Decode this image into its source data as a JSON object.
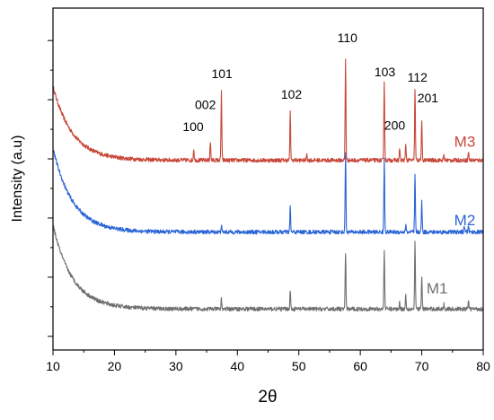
{
  "chart_data": {
    "type": "line",
    "title": "",
    "xlabel": "2θ",
    "ylabel": "Intensity (a.u)",
    "xlim": [
      10,
      80
    ],
    "x_ticks": [
      10,
      20,
      30,
      40,
      50,
      60,
      70,
      80
    ],
    "y_tick_labels": false,
    "grid": false,
    "legend": "none",
    "series": [
      {
        "name": "M3",
        "color": "#c8483a",
        "baseline": 0.555,
        "background_rise": 0.215,
        "peaks": [
          {
            "x": 32.9,
            "h": 0.035
          },
          {
            "x": 35.6,
            "h": 0.055
          },
          {
            "x": 37.4,
            "h": 0.205
          },
          {
            "x": 48.6,
            "h": 0.14
          },
          {
            "x": 51.3,
            "h": 0.02
          },
          {
            "x": 57.6,
            "h": 0.295
          },
          {
            "x": 63.9,
            "h": 0.235
          },
          {
            "x": 66.4,
            "h": 0.035
          },
          {
            "x": 67.4,
            "h": 0.045
          },
          {
            "x": 68.9,
            "h": 0.21
          },
          {
            "x": 70.0,
            "h": 0.11
          },
          {
            "x": 73.6,
            "h": 0.015
          },
          {
            "x": 77.6,
            "h": 0.025
          }
        ]
      },
      {
        "name": "M2",
        "color": "#2a64d6",
        "baseline": 0.345,
        "background_rise": 0.245,
        "peaks": [
          {
            "x": 37.4,
            "h": 0.02
          },
          {
            "x": 48.6,
            "h": 0.075
          },
          {
            "x": 57.6,
            "h": 0.235
          },
          {
            "x": 63.9,
            "h": 0.215
          },
          {
            "x": 67.4,
            "h": 0.02
          },
          {
            "x": 68.9,
            "h": 0.165
          },
          {
            "x": 70.0,
            "h": 0.09
          },
          {
            "x": 76.9,
            "h": 0.02
          },
          {
            "x": 77.6,
            "h": 0.02
          }
        ]
      },
      {
        "name": "M1",
        "color": "#6f6f6f",
        "baseline": 0.12,
        "background_rise": 0.245,
        "peaks": [
          {
            "x": 37.4,
            "h": 0.03
          },
          {
            "x": 48.6,
            "h": 0.055
          },
          {
            "x": 57.6,
            "h": 0.165
          },
          {
            "x": 63.9,
            "h": 0.175
          },
          {
            "x": 66.4,
            "h": 0.02
          },
          {
            "x": 67.4,
            "h": 0.04
          },
          {
            "x": 68.9,
            "h": 0.195
          },
          {
            "x": 70.0,
            "h": 0.095
          },
          {
            "x": 73.6,
            "h": 0.015
          },
          {
            "x": 77.6,
            "h": 0.025
          }
        ]
      }
    ],
    "series_labels": [
      {
        "text": "M3",
        "x": 77.0,
        "y": 0.595
      },
      {
        "text": "M2",
        "x": 77.0,
        "y": 0.365
      },
      {
        "text": "M1",
        "x": 72.5,
        "y": 0.165
      }
    ],
    "annotations": [
      {
        "text": "100",
        "x": 32.8,
        "y": 0.64
      },
      {
        "text": "002",
        "x": 34.8,
        "y": 0.705
      },
      {
        "text": "101",
        "x": 37.5,
        "y": 0.795
      },
      {
        "text": "102",
        "x": 48.8,
        "y": 0.735
      },
      {
        "text": "110",
        "x": 57.9,
        "y": 0.9
      },
      {
        "text": "103",
        "x": 64.0,
        "y": 0.8
      },
      {
        "text": "112",
        "x": 69.3,
        "y": 0.785
      },
      {
        "text": "200",
        "x": 65.6,
        "y": 0.645
      },
      {
        "text": "201",
        "x": 71.0,
        "y": 0.725
      }
    ]
  }
}
